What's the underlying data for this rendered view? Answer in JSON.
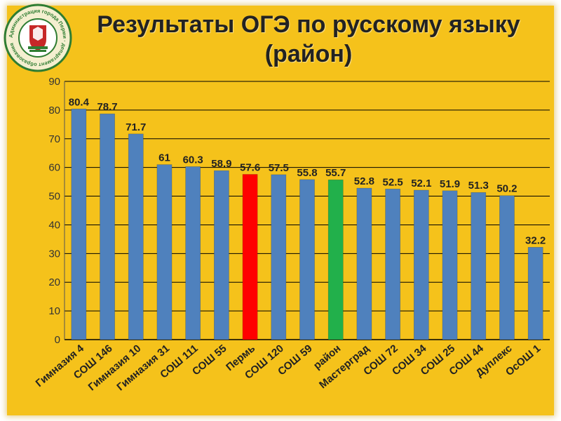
{
  "page": {
    "title_line1": "Результаты ОГЭ по русскому языку",
    "title_line2": "(район)",
    "logo_text": "Администрация города Перми · департамент образования"
  },
  "colors": {
    "background": "#f5c21b",
    "bar_default": "#4f81bd",
    "bar_perm": "#ff0000",
    "bar_district": "#22b04b",
    "gridline": "#000000"
  },
  "chart_data": {
    "type": "bar",
    "title": "Результаты ОГЭ по русскому языку (район)",
    "xlabel": "",
    "ylabel": "",
    "ylim": [
      0,
      90
    ],
    "yticks": [
      0,
      10,
      20,
      30,
      40,
      50,
      60,
      70,
      80,
      90
    ],
    "grid": true,
    "legend": "none",
    "categories": [
      "Гимназия 4",
      "СОШ 146",
      "Гимназия 10",
      "Гимназия 31",
      "СОШ 111",
      "СОШ 55",
      "Пермь",
      "СОШ 120",
      "СОШ 59",
      "район",
      "Мастерград",
      "СОШ 72",
      "СОШ 34",
      "СОШ 25",
      "СОШ 44",
      "Дуплекс",
      "ОсОШ 1"
    ],
    "values": [
      80.4,
      78.7,
      71.7,
      61,
      60.3,
      58.9,
      57.6,
      57.5,
      55.8,
      55.7,
      52.8,
      52.5,
      52.1,
      51.9,
      51.3,
      50.2,
      32.2
    ],
    "value_labels": [
      "80.4",
      "78.7",
      "71.7",
      "61",
      "60.3",
      "58.9",
      "57.6",
      "57.5",
      "55.8",
      "55.7",
      "52.8",
      "52.5",
      "52.1",
      "51.9",
      "51.3",
      "50.2",
      "32.2"
    ],
    "highlight": {
      "Пермь": "#ff0000",
      "район": "#22b04b"
    }
  }
}
